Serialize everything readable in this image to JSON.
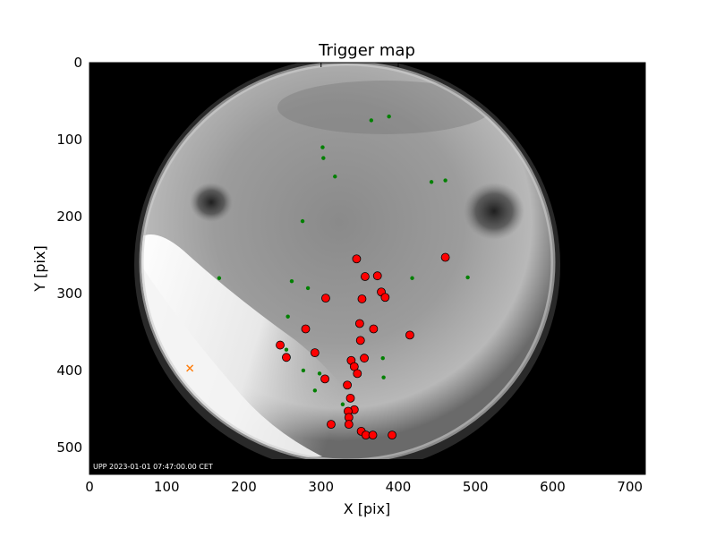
{
  "chart_data": {
    "type": "scatter",
    "title": "Trigger map",
    "xlabel": "X [pix]",
    "ylabel": "Y [pix]",
    "xlim": [
      0,
      720
    ],
    "ylim": [
      535,
      0
    ],
    "x_ticks": [
      0,
      100,
      200,
      300,
      400,
      500,
      600,
      700
    ],
    "y_ticks": [
      0,
      100,
      200,
      300,
      400,
      500
    ],
    "background": "grayscale all-sky camera image (fisheye)",
    "image_caption": "UPP 2023-01-01 07:47:00.00 CET",
    "grid": false,
    "legend": "none",
    "series": [
      {
        "marker": "large red circle",
        "color": "#ff0000",
        "points": [
          [
            346,
            255
          ],
          [
            461,
            253
          ],
          [
            357,
            278
          ],
          [
            373,
            277
          ],
          [
            378,
            298
          ],
          [
            383,
            305
          ],
          [
            306,
            306
          ],
          [
            353,
            307
          ],
          [
            280,
            346
          ],
          [
            350,
            339
          ],
          [
            368,
            346
          ],
          [
            415,
            354
          ],
          [
            351,
            361
          ],
          [
            247,
            367
          ],
          [
            255,
            383
          ],
          [
            292,
            377
          ],
          [
            339,
            387
          ],
          [
            343,
            395
          ],
          [
            356,
            384
          ],
          [
            347,
            404
          ],
          [
            305,
            411
          ],
          [
            334,
            419
          ],
          [
            338,
            436
          ],
          [
            343,
            451
          ],
          [
            335,
            453
          ],
          [
            336,
            461
          ],
          [
            336,
            470
          ],
          [
            313,
            470
          ],
          [
            352,
            479
          ],
          [
            358,
            484
          ],
          [
            367,
            484
          ],
          [
            392,
            484
          ]
        ]
      },
      {
        "marker": "small green dot",
        "color": "#008000",
        "points": [
          [
            365,
            75
          ],
          [
            388,
            70
          ],
          [
            302,
            110
          ],
          [
            303,
            124
          ],
          [
            318,
            148
          ],
          [
            443,
            155
          ],
          [
            461,
            153
          ],
          [
            276,
            206
          ],
          [
            168,
            280
          ],
          [
            262,
            284
          ],
          [
            283,
            293
          ],
          [
            418,
            280
          ],
          [
            490,
            279
          ],
          [
            257,
            330
          ],
          [
            255,
            373
          ],
          [
            277,
            400
          ],
          [
            298,
            404
          ],
          [
            380,
            384
          ],
          [
            381,
            409
          ],
          [
            292,
            426
          ],
          [
            328,
            444
          ]
        ]
      },
      {
        "marker": "small orange x",
        "color": "#ff7f0e",
        "points": [
          [
            130,
            397
          ]
        ]
      }
    ]
  }
}
